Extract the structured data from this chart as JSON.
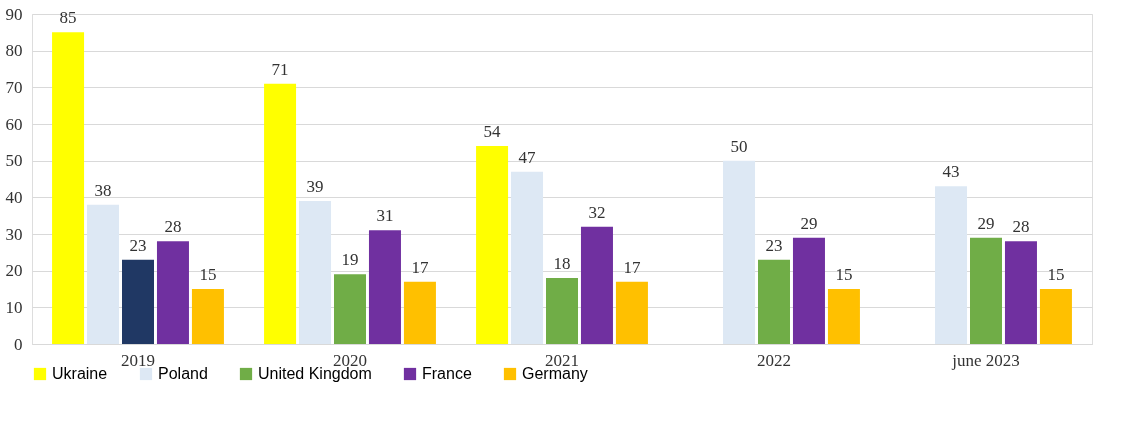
{
  "chart_data": {
    "type": "bar",
    "categories": [
      "2019",
      "2020",
      "2021",
      "2022",
      "june 2023"
    ],
    "series": [
      {
        "name": "Ukraine",
        "color": "#ffff00",
        "values": [
          85,
          71,
          54,
          null,
          null
        ]
      },
      {
        "name": "Poland",
        "color": "#dde8f4",
        "values": [
          38,
          39,
          47,
          50,
          43
        ]
      },
      {
        "name": "United Kingdom",
        "color": "#70ad47",
        "colors": [
          "#203864",
          "#70ad47",
          "#70ad47",
          "#70ad47",
          "#70ad47"
        ],
        "values": [
          23,
          19,
          18,
          23,
          29
        ]
      },
      {
        "name": "France",
        "color": "#7030a0",
        "values": [
          28,
          31,
          32,
          29,
          28
        ]
      },
      {
        "name": "Germany",
        "color": "#ffc000",
        "values": [
          15,
          17,
          17,
          15,
          15
        ]
      }
    ],
    "ylim": [
      0,
      90
    ],
    "yticks": [
      0,
      10,
      20,
      30,
      40,
      50,
      60,
      70,
      80,
      90
    ],
    "grid": "y",
    "legend": "bottom",
    "data_labels": true
  }
}
